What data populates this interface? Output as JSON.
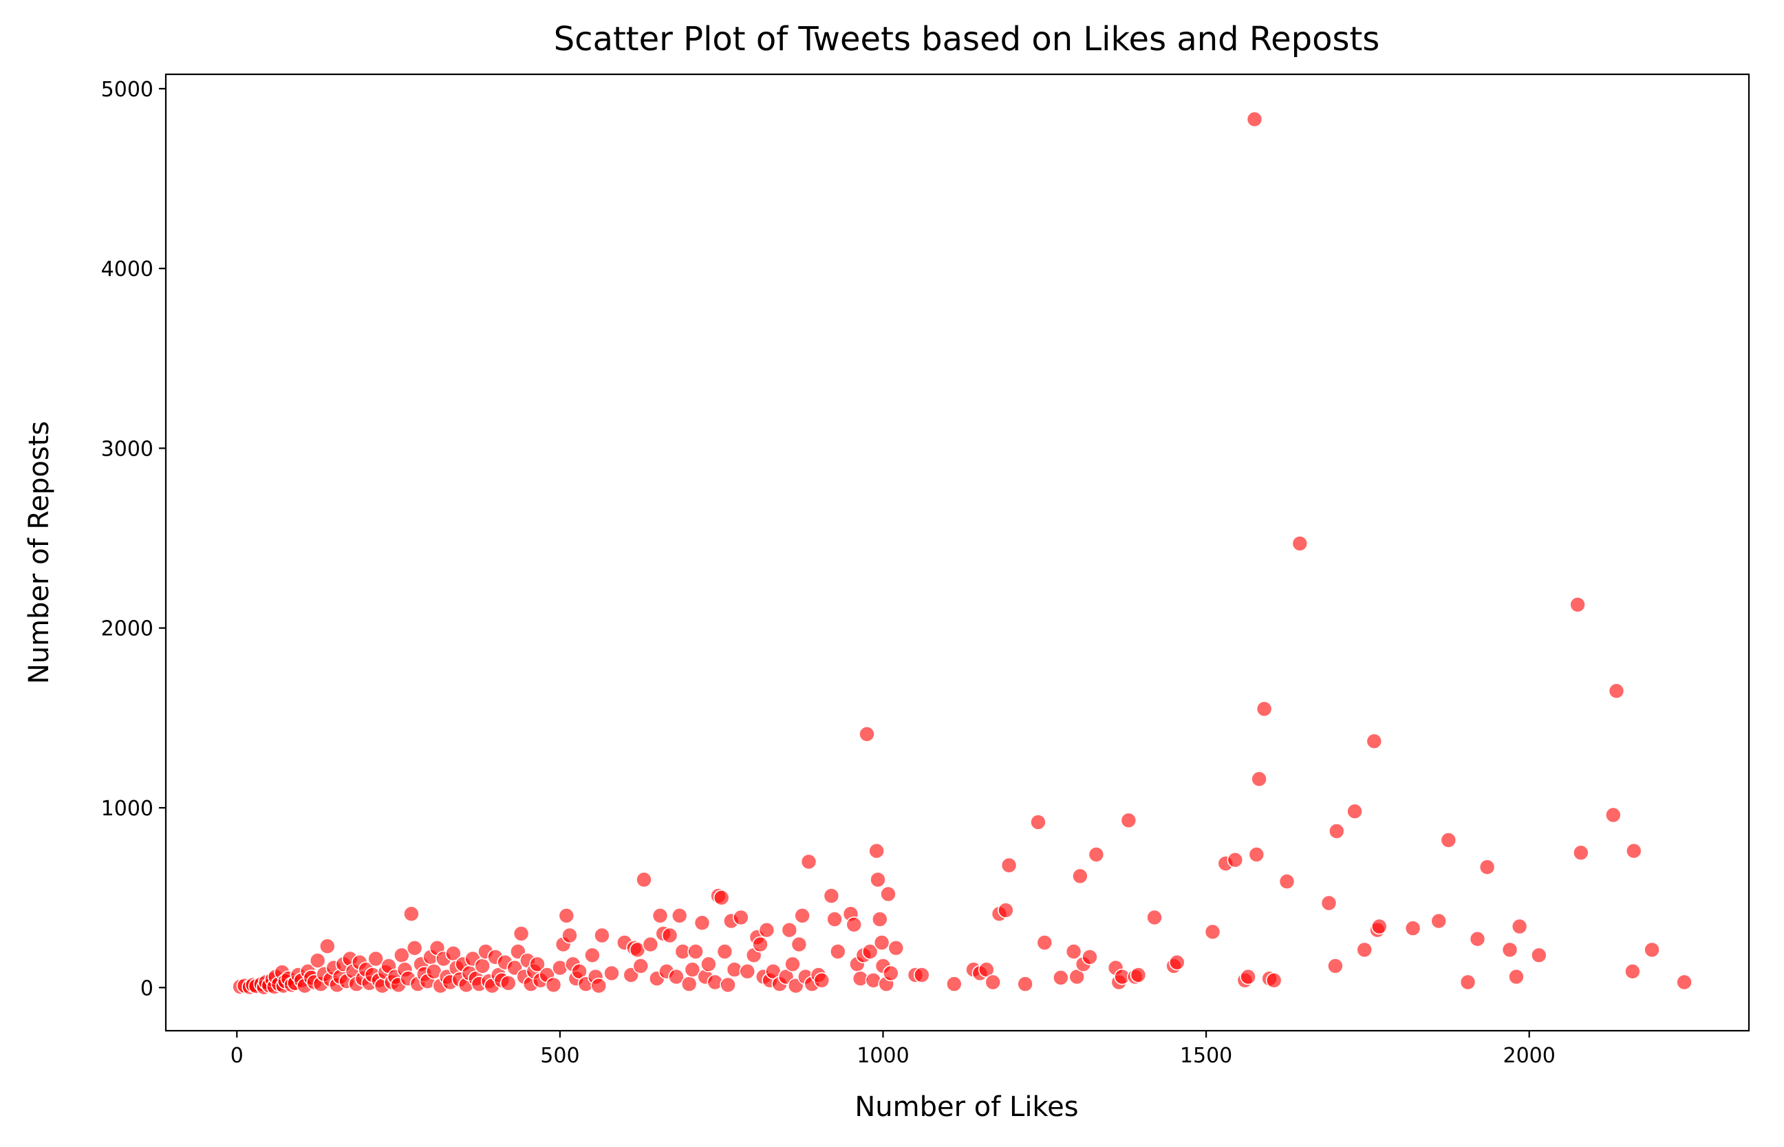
{
  "chart_data": {
    "type": "scatter",
    "title": "Scatter Plot of Tweets based on Likes and Reposts",
    "xlabel": "Number of Likes",
    "ylabel": "Number of Reposts",
    "xlim": [
      -110,
      2340
    ],
    "ylim": [
      -240,
      5080
    ],
    "xticks": [
      0,
      500,
      1000,
      1500,
      2000
    ],
    "yticks": [
      0,
      1000,
      2000,
      3000,
      4000,
      5000
    ],
    "xtick_labels": [
      "0",
      "500",
      "1000",
      "1500",
      "2000"
    ],
    "ytick_labels": [
      "0",
      "1000",
      "2000",
      "3000",
      "4000",
      "5000"
    ],
    "grid": false,
    "series": [
      {
        "color": "#ff0000",
        "points": [
          [
            5,
            5
          ],
          [
            12,
            10
          ],
          [
            20,
            3
          ],
          [
            25,
            15
          ],
          [
            30,
            8
          ],
          [
            38,
            20
          ],
          [
            42,
            2
          ],
          [
            45,
            30
          ],
          [
            50,
            12
          ],
          [
            55,
            45
          ],
          [
            58,
            5
          ],
          [
            60,
            60
          ],
          [
            65,
            20
          ],
          [
            70,
            85
          ],
          [
            72,
            10
          ],
          [
            75,
            35
          ],
          [
            80,
            50
          ],
          [
            85,
            15
          ],
          [
            90,
            25
          ],
          [
            95,
            70
          ],
          [
            100,
            40
          ],
          [
            105,
            10
          ],
          [
            110,
            90
          ],
          [
            115,
            55
          ],
          [
            120,
            30
          ],
          [
            125,
            150
          ],
          [
            130,
            20
          ],
          [
            135,
            75
          ],
          [
            140,
            230
          ],
          [
            145,
            45
          ],
          [
            150,
            110
          ],
          [
            155,
            15
          ],
          [
            160,
            60
          ],
          [
            165,
            130
          ],
          [
            170,
            35
          ],
          [
            175,
            160
          ],
          [
            180,
            90
          ],
          [
            185,
            20
          ],
          [
            190,
            140
          ],
          [
            195,
            50
          ],
          [
            200,
            100
          ],
          [
            205,
            25
          ],
          [
            210,
            70
          ],
          [
            215,
            160
          ],
          [
            220,
            40
          ],
          [
            225,
            10
          ],
          [
            230,
            85
          ],
          [
            235,
            120
          ],
          [
            240,
            30
          ],
          [
            245,
            60
          ],
          [
            250,
            15
          ],
          [
            255,
            180
          ],
          [
            260,
            100
          ],
          [
            265,
            50
          ],
          [
            270,
            410
          ],
          [
            275,
            220
          ],
          [
            280,
            20
          ],
          [
            285,
            130
          ],
          [
            290,
            75
          ],
          [
            295,
            35
          ],
          [
            300,
            170
          ],
          [
            305,
            90
          ],
          [
            310,
            220
          ],
          [
            315,
            10
          ],
          [
            320,
            160
          ],
          [
            325,
            60
          ],
          [
            330,
            30
          ],
          [
            335,
            190
          ],
          [
            340,
            110
          ],
          [
            345,
            45
          ],
          [
            350,
            130
          ],
          [
            355,
            15
          ],
          [
            360,
            80
          ],
          [
            365,
            160
          ],
          [
            370,
            50
          ],
          [
            375,
            20
          ],
          [
            380,
            120
          ],
          [
            385,
            200
          ],
          [
            390,
            35
          ],
          [
            395,
            10
          ],
          [
            400,
            170
          ],
          [
            405,
            70
          ],
          [
            410,
            40
          ],
          [
            415,
            140
          ],
          [
            420,
            25
          ],
          [
            430,
            110
          ],
          [
            435,
            200
          ],
          [
            440,
            300
          ],
          [
            445,
            60
          ],
          [
            450,
            150
          ],
          [
            455,
            20
          ],
          [
            460,
            90
          ],
          [
            465,
            130
          ],
          [
            470,
            40
          ],
          [
            480,
            70
          ],
          [
            490,
            15
          ],
          [
            500,
            110
          ],
          [
            505,
            240
          ],
          [
            510,
            400
          ],
          [
            515,
            290
          ],
          [
            520,
            130
          ],
          [
            525,
            50
          ],
          [
            530,
            90
          ],
          [
            540,
            20
          ],
          [
            550,
            180
          ],
          [
            555,
            60
          ],
          [
            560,
            10
          ],
          [
            565,
            290
          ],
          [
            580,
            80
          ],
          [
            600,
            250
          ],
          [
            610,
            70
          ],
          [
            615,
            220
          ],
          [
            620,
            210
          ],
          [
            625,
            120
          ],
          [
            630,
            600
          ],
          [
            640,
            240
          ],
          [
            650,
            50
          ],
          [
            655,
            400
          ],
          [
            660,
            300
          ],
          [
            665,
            90
          ],
          [
            670,
            290
          ],
          [
            680,
            60
          ],
          [
            685,
            400
          ],
          [
            690,
            200
          ],
          [
            700,
            20
          ],
          [
            705,
            100
          ],
          [
            710,
            200
          ],
          [
            720,
            360
          ],
          [
            725,
            60
          ],
          [
            730,
            130
          ],
          [
            740,
            30
          ],
          [
            745,
            510
          ],
          [
            750,
            500
          ],
          [
            755,
            200
          ],
          [
            760,
            15
          ],
          [
            765,
            370
          ],
          [
            770,
            100
          ],
          [
            780,
            390
          ],
          [
            790,
            90
          ],
          [
            800,
            180
          ],
          [
            805,
            280
          ],
          [
            810,
            240
          ],
          [
            815,
            60
          ],
          [
            820,
            320
          ],
          [
            825,
            40
          ],
          [
            830,
            90
          ],
          [
            840,
            20
          ],
          [
            850,
            60
          ],
          [
            855,
            320
          ],
          [
            860,
            130
          ],
          [
            865,
            10
          ],
          [
            870,
            240
          ],
          [
            875,
            400
          ],
          [
            880,
            60
          ],
          [
            885,
            700
          ],
          [
            890,
            20
          ],
          [
            900,
            70
          ],
          [
            905,
            40
          ],
          [
            920,
            510
          ],
          [
            925,
            380
          ],
          [
            930,
            200
          ],
          [
            950,
            410
          ],
          [
            955,
            350
          ],
          [
            960,
            130
          ],
          [
            965,
            50
          ],
          [
            970,
            180
          ],
          [
            975,
            1410
          ],
          [
            980,
            200
          ],
          [
            985,
            40
          ],
          [
            990,
            760
          ],
          [
            992,
            600
          ],
          [
            995,
            380
          ],
          [
            998,
            250
          ],
          [
            1000,
            120
          ],
          [
            1005,
            20
          ],
          [
            1008,
            520
          ],
          [
            1012,
            80
          ],
          [
            1020,
            220
          ],
          [
            1050,
            70
          ],
          [
            1060,
            70
          ],
          [
            1110,
            20
          ],
          [
            1140,
            100
          ],
          [
            1150,
            80
          ],
          [
            1160,
            100
          ],
          [
            1170,
            30
          ],
          [
            1180,
            410
          ],
          [
            1190,
            430
          ],
          [
            1195,
            680
          ],
          [
            1220,
            20
          ],
          [
            1240,
            920
          ],
          [
            1250,
            250
          ],
          [
            1275,
            55
          ],
          [
            1295,
            200
          ],
          [
            1300,
            60
          ],
          [
            1305,
            620
          ],
          [
            1310,
            130
          ],
          [
            1320,
            170
          ],
          [
            1330,
            740
          ],
          [
            1360,
            110
          ],
          [
            1365,
            30
          ],
          [
            1370,
            60
          ],
          [
            1380,
            930
          ],
          [
            1390,
            60
          ],
          [
            1395,
            70
          ],
          [
            1420,
            390
          ],
          [
            1450,
            120
          ],
          [
            1455,
            140
          ],
          [
            1510,
            310
          ],
          [
            1530,
            690
          ],
          [
            1545,
            710
          ],
          [
            1560,
            40
          ],
          [
            1565,
            60
          ],
          [
            1575,
            4830
          ],
          [
            1578,
            740
          ],
          [
            1582,
            1160
          ],
          [
            1590,
            1550
          ],
          [
            1598,
            50
          ],
          [
            1605,
            40
          ],
          [
            1625,
            590
          ],
          [
            1645,
            2470
          ],
          [
            1690,
            470
          ],
          [
            1700,
            120
          ],
          [
            1702,
            870
          ],
          [
            1730,
            980
          ],
          [
            1745,
            210
          ],
          [
            1760,
            1370
          ],
          [
            1765,
            320
          ],
          [
            1768,
            340
          ],
          [
            1820,
            330
          ],
          [
            1860,
            370
          ],
          [
            1875,
            820
          ],
          [
            1905,
            30
          ],
          [
            1920,
            270
          ],
          [
            1935,
            670
          ],
          [
            1970,
            210
          ],
          [
            1980,
            60
          ],
          [
            1985,
            340
          ],
          [
            2015,
            180
          ],
          [
            2075,
            2130
          ],
          [
            2080,
            750
          ],
          [
            2130,
            960
          ],
          [
            2135,
            1650
          ],
          [
            2160,
            90
          ],
          [
            2162,
            760
          ],
          [
            2190,
            210
          ],
          [
            2240,
            30
          ]
        ]
      }
    ]
  }
}
